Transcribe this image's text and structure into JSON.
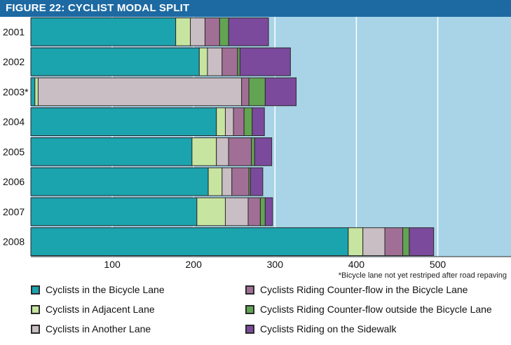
{
  "title": "FIGURE 22: CYCLIST MODAL SPLIT",
  "footnote": "*Bicycle lane not yet restriped after road repaving",
  "colors": {
    "title_bg": "#1d6aa3",
    "plot_bg": "#a9d4e8",
    "grid": "#ffffff"
  },
  "chart_data": {
    "type": "bar",
    "orientation": "horizontal",
    "stacked": true,
    "title": "FIGURE 22: CYCLIST MODAL SPLIT",
    "xlim": [
      0,
      590
    ],
    "xticks": [
      100,
      200,
      300,
      400,
      500
    ],
    "categories": [
      "2001",
      "2002",
      "2003*",
      "2004",
      "2005",
      "2006",
      "2007",
      "2008"
    ],
    "series": [
      {
        "name": "Cyclists in the Bicycle Lane",
        "color": "#1ba3ae",
        "values": [
          178,
          207,
          5,
          228,
          198,
          218,
          204,
          390
        ]
      },
      {
        "name": "Cyclists in Adjacent Lane",
        "color": "#c7e5a0",
        "values": [
          18,
          10,
          4,
          11,
          30,
          17,
          35,
          18
        ]
      },
      {
        "name": "Cyclists in Another Lane",
        "color": "#c9bec3",
        "values": [
          18,
          18,
          250,
          10,
          15,
          12,
          28,
          27
        ]
      },
      {
        "name": "Cyclists Riding Counter-flow in the Bicycle Lane",
        "color": "#a16f95",
        "values": [
          18,
          19,
          9,
          13,
          28,
          21,
          15,
          22
        ]
      },
      {
        "name": "Cyclists Riding Counter-flow outside the Bicycle Lane",
        "color": "#62a452",
        "values": [
          11,
          3,
          20,
          10,
          4,
          2,
          6,
          8
        ]
      },
      {
        "name": "Cyclists Riding on the Sidewalk",
        "color": "#7b4a9c",
        "values": [
          49,
          62,
          38,
          15,
          21,
          15,
          9,
          30
        ]
      }
    ]
  },
  "legend": {
    "items": [
      {
        "label": "Cyclists in the Bicycle Lane",
        "color": "#1ba3ae"
      },
      {
        "label": "Cyclists in Adjacent Lane",
        "color": "#c7e5a0"
      },
      {
        "label": "Cyclists in Another Lane",
        "color": "#c9bec3"
      },
      {
        "label": "Cyclists Riding Counter-flow in the Bicycle Lane",
        "color": "#a16f95"
      },
      {
        "label": "Cyclists Riding Counter-flow outside the Bicycle Lane",
        "color": "#62a452"
      },
      {
        "label": "Cyclists Riding on the Sidewalk",
        "color": "#7b4a9c"
      }
    ]
  }
}
